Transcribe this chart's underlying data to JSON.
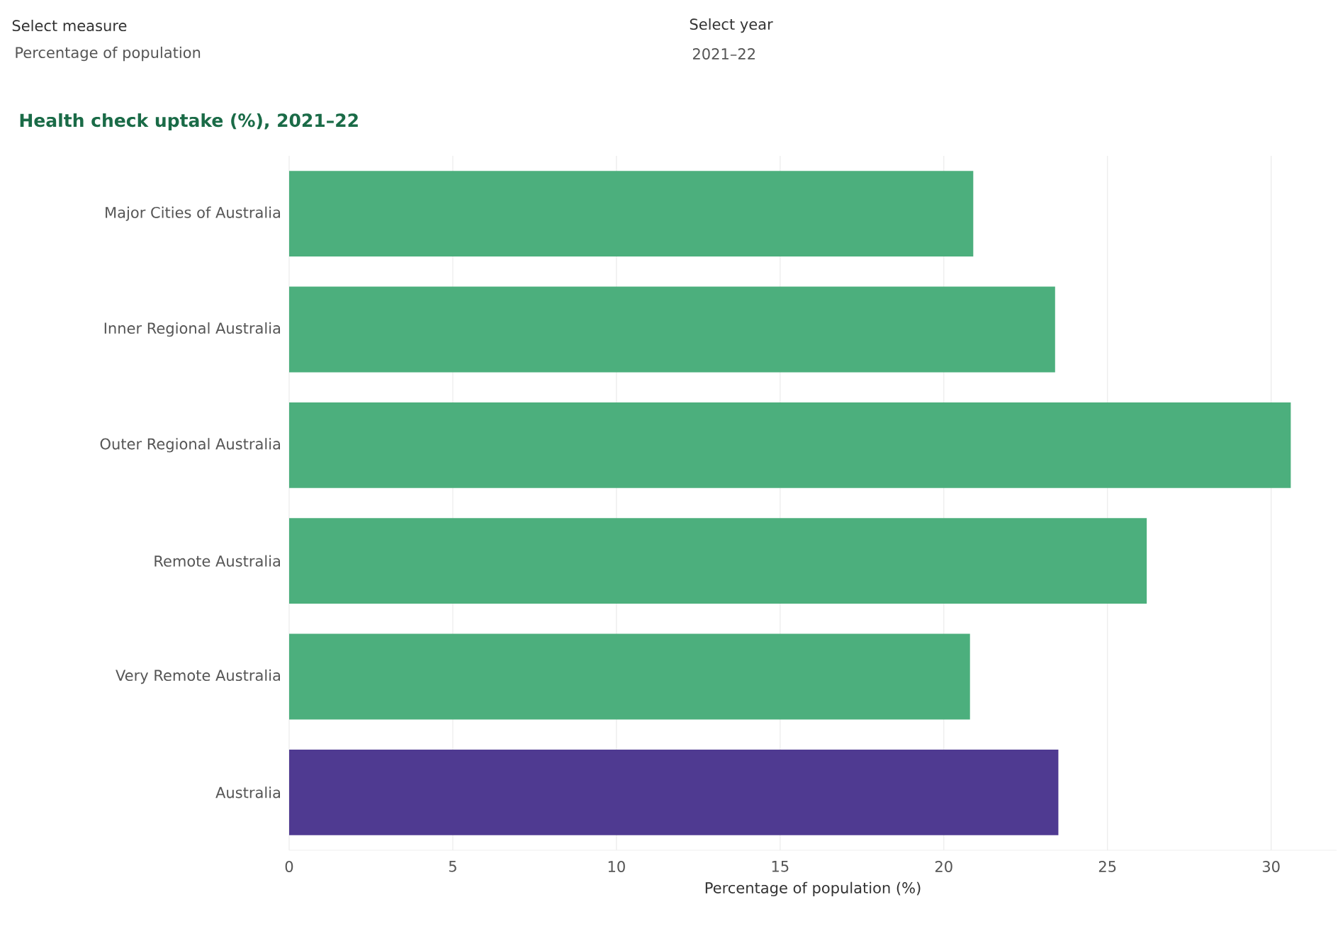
{
  "chart_data": {
    "type": "bar",
    "orientation": "horizontal",
    "title": "Health check uptake (%), 2021–22",
    "xlabel": "Percentage of population (%)",
    "categories": [
      "Major Cities of Australia",
      "Inner Regional Australia",
      "Outer Regional Australia",
      "Remote Australia",
      "Very Remote Australia",
      "Australia"
    ],
    "values": [
      20.9,
      23.4,
      30.6,
      26.2,
      20.8,
      23.5
    ],
    "colors": [
      "#4caf7d",
      "#4caf7d",
      "#4caf7d",
      "#4caf7d",
      "#4caf7d",
      "#4f3a91"
    ],
    "xlim": [
      0,
      32
    ],
    "xticks": [
      0,
      5,
      10,
      15,
      20,
      25,
      30
    ],
    "grid": "x",
    "annotations": [
      "Select measure",
      "Percentage of population",
      "Select year",
      "2021–22"
    ]
  }
}
